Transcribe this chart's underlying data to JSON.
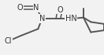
{
  "bg_color": "#f2f2f2",
  "line_color": "#555555",
  "bond_width": 1.4,
  "font_size": 7.0,
  "text_color": "#333333",
  "fig_w": 1.32,
  "fig_h": 0.71,
  "dpi": 100,
  "xlim": [
    0.0,
    1.0
  ],
  "ylim": [
    0.0,
    1.0
  ]
}
